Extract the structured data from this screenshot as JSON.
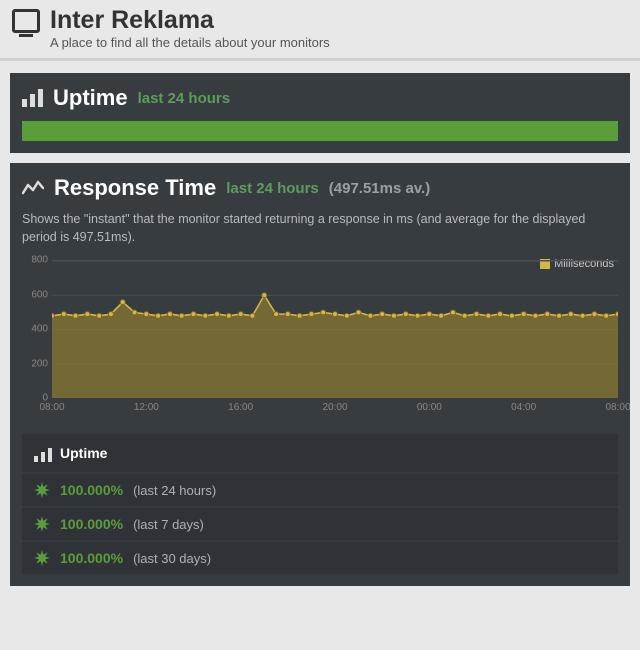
{
  "header": {
    "title": "Inter Reklama",
    "subtitle": "A place to find all the details about your monitors"
  },
  "uptime_section": {
    "title": "Uptime",
    "subtitle": "last 24 hours",
    "bar_color": "#5a9e3a"
  },
  "response_section": {
    "title": "Response Time",
    "subtitle": "last 24 hours",
    "avg_text": "(497.51ms av.)",
    "description": "Shows the \"instant\" that the monitor started returning a response in ms (and average for the displayed period is 497.51ms).",
    "legend_label": "Milliseconds",
    "legend_color": "#d6b646",
    "chart": {
      "type": "area",
      "ylim": [
        0,
        800
      ],
      "ytick_step": 200,
      "y_ticks": [
        0,
        200,
        400,
        600,
        800
      ],
      "x_labels": [
        "08:00",
        "12:00",
        "16:00",
        "20:00",
        "00:00",
        "04:00",
        "08:00"
      ],
      "series_color": "#d6b646",
      "fill_color": "#8a7732",
      "fill_opacity": 0.75,
      "marker": "circle",
      "marker_fill": "#d6b646",
      "marker_stroke": "#7a6820",
      "grid_color": "#4a4f53",
      "background_color": "#373c40",
      "values": [
        480,
        490,
        480,
        490,
        480,
        490,
        560,
        500,
        490,
        480,
        490,
        480,
        490,
        480,
        490,
        480,
        490,
        480,
        600,
        490,
        490,
        480,
        490,
        500,
        490,
        480,
        500,
        480,
        490,
        480,
        490,
        480,
        490,
        480,
        500,
        480,
        490,
        480,
        490,
        480,
        490,
        480,
        490,
        480,
        490,
        480,
        490,
        480,
        490
      ]
    }
  },
  "stats": {
    "header": "Uptime",
    "rows": [
      {
        "pct": "100.000%",
        "period": "(last 24 hours)"
      },
      {
        "pct": "100.000%",
        "period": "(last 7 days)"
      },
      {
        "pct": "100.000%",
        "period": "(last 30 days)"
      }
    ]
  },
  "colors": {
    "accent_green": "#5a9e3a",
    "panel_bg": "#373c40",
    "subpanel_bg": "#2f3337",
    "text_muted": "#aeb2b6"
  }
}
